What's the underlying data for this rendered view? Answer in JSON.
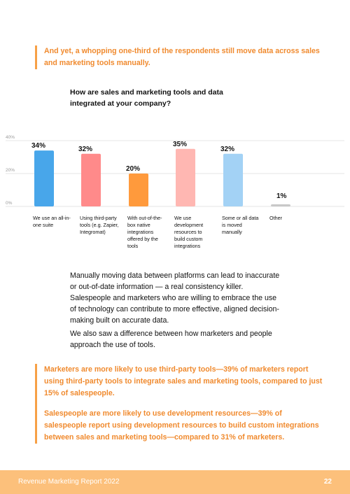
{
  "callout_top": "And yet, a whopping one-third of the respondents still move data across sales and marketing tools manually.",
  "chart_title": "How are sales and marketing tools and data integrated at your company?",
  "chart_data": {
    "type": "bar",
    "title": "How are sales and marketing tools and data integrated at your company?",
    "categories": [
      "We use an all-in-one suite",
      "Using third-party tools (e.g. Zapier, Integromat)",
      "With out-of-the-box native integrations offered by the tools",
      "We use development resources to build custom integrations",
      "Some or all data is moved manually",
      "Other"
    ],
    "values": [
      34,
      32,
      20,
      35,
      32,
      1
    ],
    "value_labels": [
      "34%",
      "32%",
      "20%",
      "35%",
      "32%",
      "1%"
    ],
    "bar_colors": [
      "#48a6ea",
      "#ff8a8a",
      "#ff9a3c",
      "#ffb7b2",
      "#a3d2f5",
      "#c8c8c8"
    ],
    "ylim": [
      0,
      40
    ],
    "y_ticks": [
      "40%",
      "20%",
      "0%"
    ],
    "grid": true
  },
  "para_1": "Manually moving data between platforms can lead to inaccurate or out-of-date information — a real consistency killer. Salespeople and marketers who are willing to embrace the use of technology can contribute to more effective, aligned decision-making built on accurate data.",
  "para_2": "We also saw a difference between how marketers and people approach the use of tools.",
  "callout_bottom_1": "Marketers are more likely to use third-party tools—39% of marketers report using third-party tools to integrate sales and marketing tools, compared to just 15% of salespeople.",
  "callout_bottom_2": "Salespeople are more likely to use development resources—39% of salespeople report using development resources to build custom integrations between sales and marketing tools—compared to 31% of marketers.",
  "footer": {
    "title": "Revenue Marketing Report 2022",
    "page": "22"
  },
  "colors": {
    "accent": "#f08a2e",
    "footer_bg": "#fcc07b"
  }
}
